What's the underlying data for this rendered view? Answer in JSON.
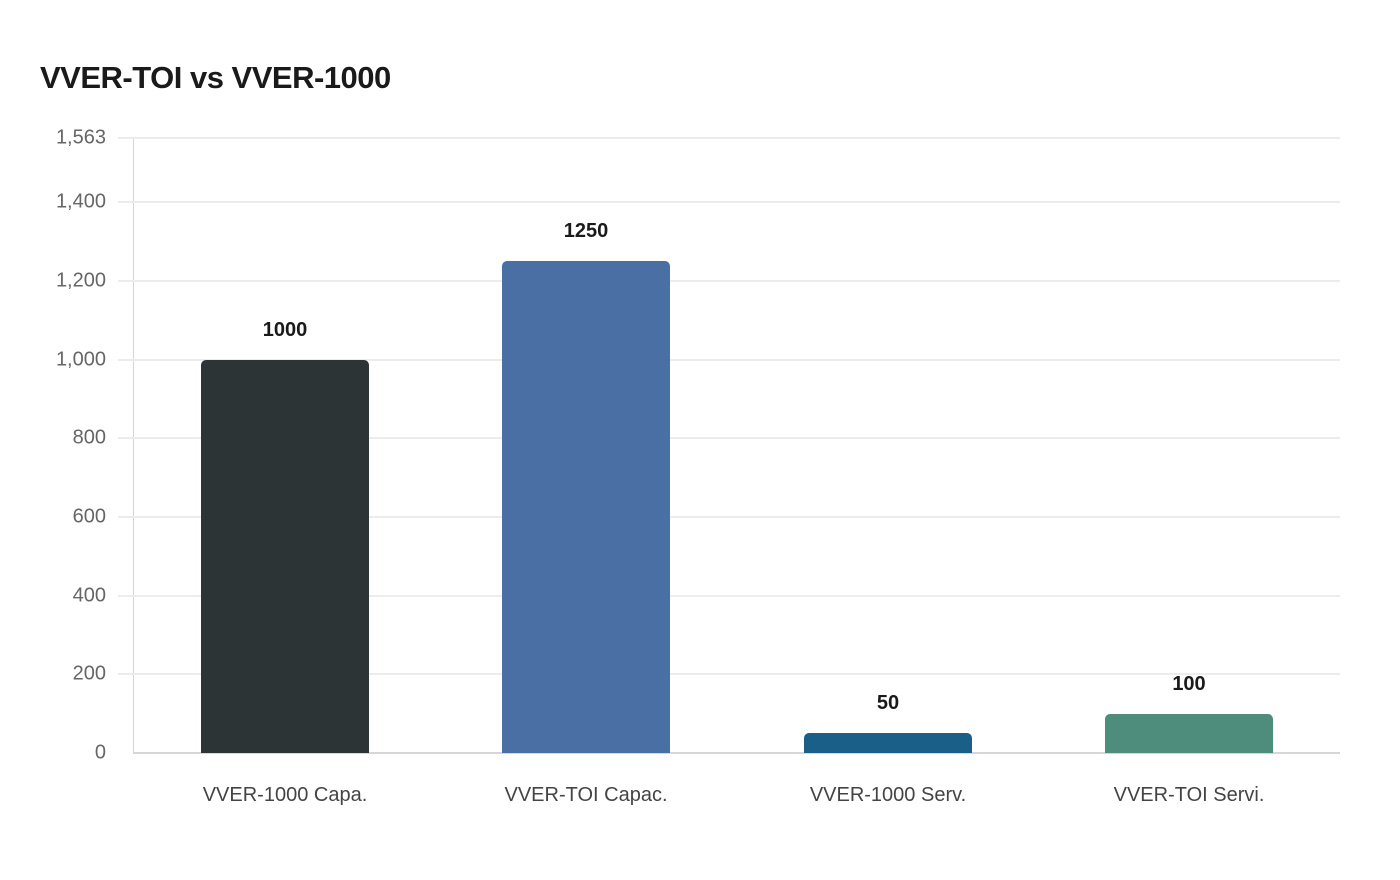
{
  "chart_data": {
    "type": "bar",
    "title": "VVER-TOI vs VVER-1000",
    "xlabel": "",
    "ylabel": "",
    "categories": [
      "VVER-1000 Capa.",
      "VVER-TOI Capac.",
      "VVER-1000 Serv.",
      "VVER-TOI Servi."
    ],
    "values": [
      1000,
      1250,
      50,
      100
    ],
    "colors": [
      "#2d3436",
      "#4a6fa5",
      "#1a5f87",
      "#4e8c7b"
    ],
    "ylim": [
      0,
      1563
    ],
    "yticks": [
      "0",
      "200",
      "400",
      "600",
      "800",
      "1,000",
      "1,200",
      "1,400",
      "1,563"
    ],
    "ytick_values": [
      0,
      200,
      400,
      600,
      800,
      1000,
      1200,
      1400,
      1563
    ],
    "grid": true,
    "legend": null,
    "data_labels": [
      "1000",
      "1250",
      "50",
      "100"
    ]
  }
}
